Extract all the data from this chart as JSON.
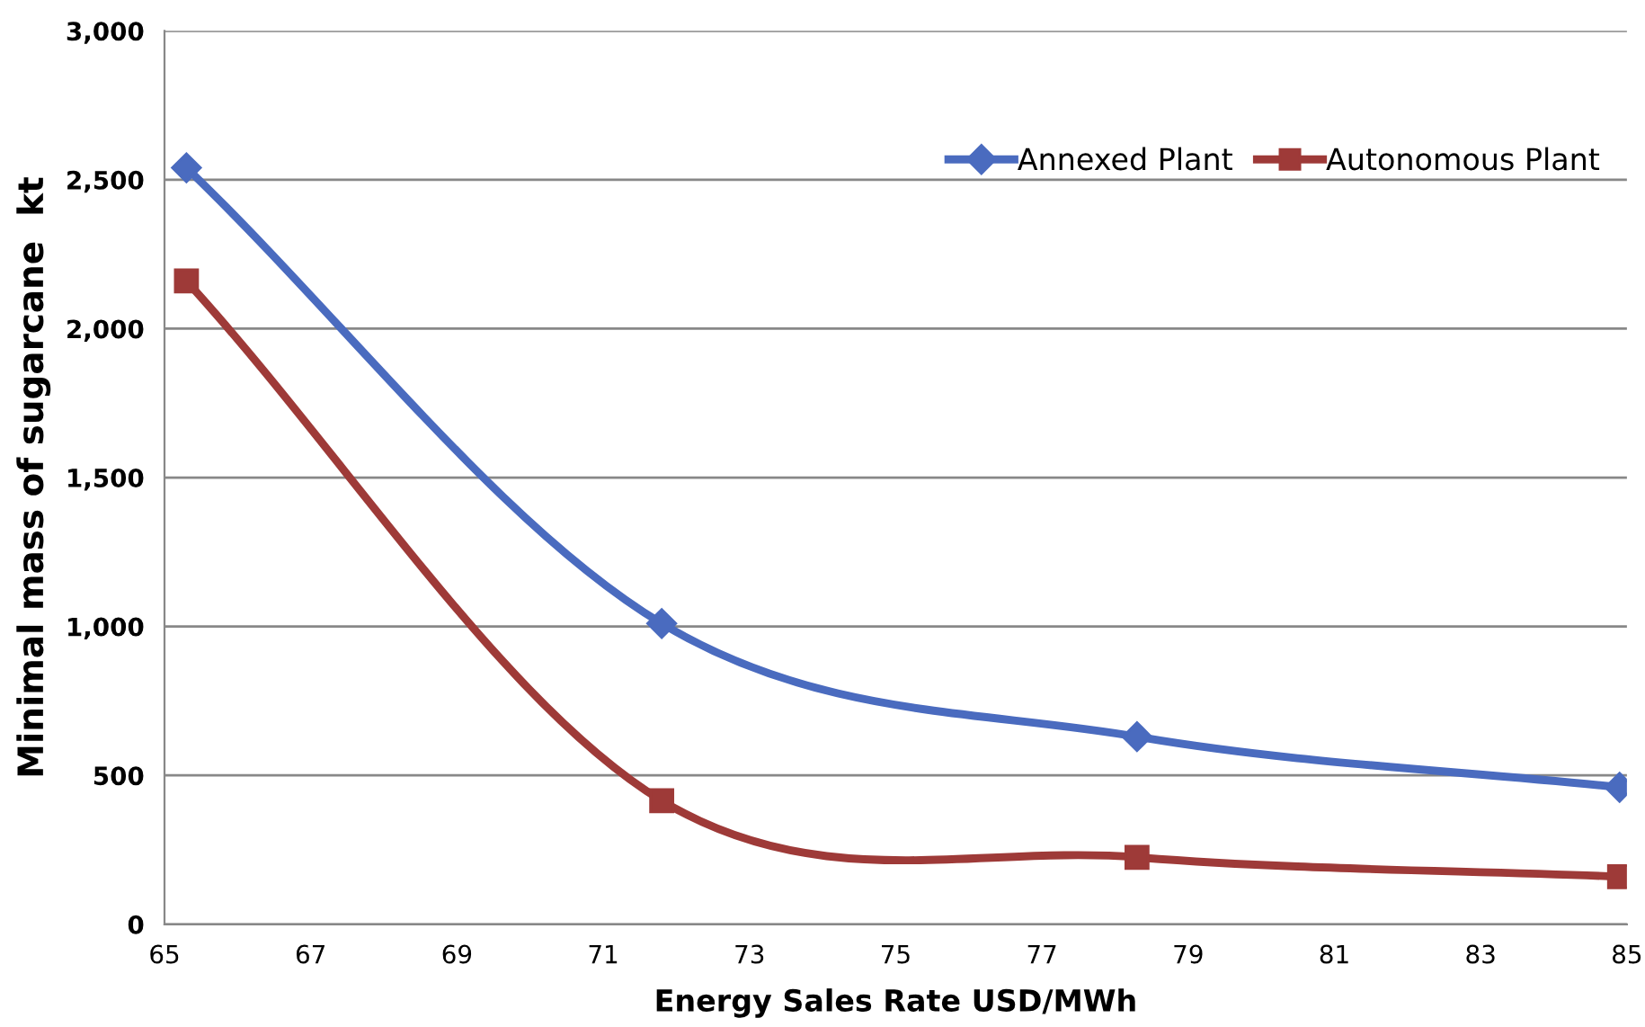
{
  "chart_data": {
    "type": "line",
    "xlabel": "Energy Sales Rate USD/MWh",
    "ylabel": "Minimal mass of sugarcane  kt",
    "x": [
      65.3,
      71.8,
      78.3,
      84.9
    ],
    "series": [
      {
        "name": "Annexed Plant",
        "color": "#4a6bbf",
        "marker": "diamond",
        "values": [
          2540,
          1010,
          630,
          460
        ]
      },
      {
        "name": "Autonomous Plant",
        "color": "#9e3a38",
        "marker": "square",
        "values": [
          2160,
          415,
          225,
          160
        ]
      }
    ],
    "xlim": [
      65,
      85
    ],
    "xticks": [
      65,
      67,
      69,
      71,
      73,
      75,
      77,
      79,
      81,
      83,
      85
    ],
    "ylim": [
      0,
      3000
    ],
    "yticks": [
      {
        "value": 0,
        "label": "0"
      },
      {
        "value": 500,
        "label": "500"
      },
      {
        "value": 1000,
        "label": "1,000"
      },
      {
        "value": 1500,
        "label": "1,500"
      },
      {
        "value": 2000,
        "label": "2,000"
      },
      {
        "value": 2500,
        "label": "2,500"
      },
      {
        "value": 3000,
        "label": "3,000"
      }
    ],
    "grid": "y",
    "legend": "top right",
    "line_style": "solid"
  }
}
